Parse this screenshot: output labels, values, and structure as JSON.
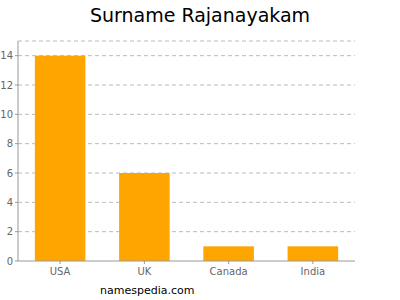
{
  "chart_data": {
    "type": "bar",
    "title": "Surname Rajanayakam",
    "categories": [
      "USA",
      "UK",
      "Canada",
      "India"
    ],
    "values": [
      14,
      6,
      1,
      1
    ],
    "color": "#ffa500",
    "ylim": [
      0,
      15
    ],
    "yticks": [
      0,
      2,
      4,
      6,
      8,
      10,
      12,
      14
    ],
    "grid": true,
    "annotations": [
      "namespedia.com"
    ]
  }
}
